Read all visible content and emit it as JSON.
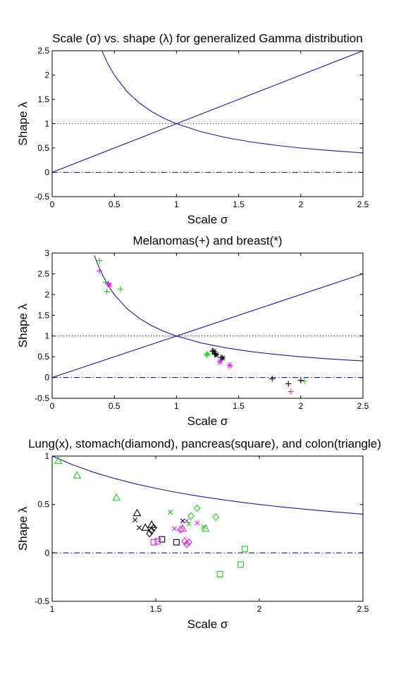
{
  "chart_data": [
    {
      "type": "line",
      "title": "Scale (σ) vs. shape (λ) for generalized Gamma distribution",
      "xlabel": "Scale σ",
      "ylabel": "Shape λ",
      "xlim": [
        0,
        2.5
      ],
      "ylim": [
        -0.5,
        2.5
      ],
      "xticks": [
        0,
        0.5,
        1,
        1.5,
        2,
        2.5
      ],
      "xtick_labels": [
        "0",
        "0.5",
        "1",
        "1.5",
        "2",
        "2.5"
      ],
      "yticks": [
        -0.5,
        0,
        0.5,
        1,
        1.5,
        2,
        2.5
      ],
      "ytick_labels": [
        "-0.5",
        "0",
        "0.5",
        "1",
        "1.5",
        "2",
        "2.5"
      ],
      "grid": false,
      "series": [
        {
          "kind": "line",
          "style": "solid",
          "color": "#1a1aa0",
          "x": [
            0,
            2.5
          ],
          "y": [
            0,
            2.5
          ]
        },
        {
          "kind": "line",
          "style": "solid",
          "color": "#1a1aa0",
          "x": [
            0.4,
            0.45,
            0.5,
            0.6,
            0.7,
            0.8,
            0.9,
            1.0,
            1.2,
            1.4,
            1.6,
            1.8,
            2.0,
            2.2,
            2.4,
            2.5
          ],
          "y": [
            2.5,
            2.222,
            2.0,
            1.667,
            1.429,
            1.25,
            1.111,
            1.0,
            0.833,
            0.714,
            0.625,
            0.556,
            0.5,
            0.455,
            0.417,
            0.4
          ]
        },
        {
          "kind": "line",
          "style": "dotted",
          "color": "#1a1aa0",
          "x": [
            0,
            2.5
          ],
          "y": [
            1,
            1
          ]
        },
        {
          "kind": "line",
          "style": "dashdot",
          "color": "#1a1aa0",
          "x": [
            0,
            2.5
          ],
          "y": [
            0,
            0
          ]
        }
      ]
    },
    {
      "type": "scatter",
      "title": "Melanomas(+) and breast(*)",
      "xlabel": "Scale σ",
      "ylabel": "Shape λ",
      "xlim": [
        0,
        2.5
      ],
      "ylim": [
        -0.5,
        3
      ],
      "xticks": [
        0,
        0.5,
        1,
        1.5,
        2,
        2.5
      ],
      "xtick_labels": [
        "0",
        "0.5",
        "1",
        "1.5",
        "2",
        "2.5"
      ],
      "yticks": [
        -0.5,
        0,
        0.5,
        1,
        1.5,
        2,
        2.5,
        3
      ],
      "ytick_labels": [
        "-0.5",
        "0",
        "0.5",
        "1",
        "1.5",
        "2",
        "2.5",
        "3"
      ],
      "grid": false,
      "series": [
        {
          "kind": "line",
          "style": "solid",
          "color": "#1a1aa0",
          "x": [
            0,
            2.5
          ],
          "y": [
            0,
            2.5
          ]
        },
        {
          "kind": "line",
          "style": "solid",
          "color": "#1a1aa0",
          "x": [
            0.34,
            0.36,
            0.4,
            0.45,
            0.5,
            0.6,
            0.7,
            0.8,
            0.9,
            1.0,
            1.2,
            1.4,
            1.6,
            1.8,
            2.0,
            2.2,
            2.4,
            2.5
          ],
          "y": [
            2.941,
            2.778,
            2.5,
            2.222,
            2.0,
            1.667,
            1.429,
            1.25,
            1.111,
            1.0,
            0.833,
            0.714,
            0.625,
            0.556,
            0.5,
            0.455,
            0.417,
            0.4
          ]
        },
        {
          "kind": "line",
          "style": "dotted",
          "color": "#1a1aa0",
          "x": [
            0,
            2.5
          ],
          "y": [
            1,
            1
          ]
        },
        {
          "kind": "line",
          "style": "dashdot",
          "color": "#1a1aa0",
          "x": [
            0,
            2.5
          ],
          "y": [
            0,
            0
          ]
        },
        {
          "kind": "markers",
          "marker": "+",
          "color": "#22cc22",
          "x": [
            0.38,
            0.43,
            0.44,
            0.55,
            1.24,
            2.03
          ],
          "y": [
            2.82,
            2.3,
            2.07,
            2.13,
            0.55,
            -0.09
          ]
        },
        {
          "kind": "markers",
          "marker": "+",
          "color": "#e020e0",
          "x": [
            0.38,
            0.45,
            1.92
          ],
          "y": [
            2.57,
            2.27,
            -0.34
          ]
        },
        {
          "kind": "markers",
          "marker": "+",
          "color": "#000000",
          "x": [
            1.29,
            1.31,
            1.36,
            1.77,
            1.9,
            2.0
          ],
          "y": [
            0.64,
            0.56,
            0.48,
            -0.03,
            -0.15,
            -0.07
          ]
        },
        {
          "kind": "markers",
          "marker": "*",
          "color": "#e020e0",
          "x": [
            0.46,
            1.35,
            1.43
          ],
          "y": [
            2.23,
            0.38,
            0.29
          ]
        },
        {
          "kind": "markers",
          "marker": "*",
          "color": "#22cc22",
          "x": [
            1.25
          ],
          "y": [
            0.56
          ]
        },
        {
          "kind": "markers",
          "marker": "*",
          "color": "#000000",
          "x": [
            1.3,
            1.32,
            1.37
          ],
          "y": [
            0.63,
            0.55,
            0.47
          ]
        }
      ]
    },
    {
      "type": "scatter",
      "title": "Lung(x), stomach(diamond), pancreas(square), and colon(triangle)",
      "xlabel": "Scale σ",
      "ylabel": "Shape λ",
      "xlim": [
        1,
        2.5
      ],
      "ylim": [
        -0.5,
        1
      ],
      "xticks": [
        1,
        1.5,
        2,
        2.5
      ],
      "xtick_labels": [
        "1",
        "1.5",
        "2",
        "2.5"
      ],
      "yticks": [
        -0.5,
        0,
        0.5,
        1
      ],
      "ytick_labels": [
        "-0.5",
        "0",
        "0.5",
        "1"
      ],
      "grid": false,
      "series": [
        {
          "kind": "line",
          "style": "solid",
          "color": "#1a1aa0",
          "x": [
            1.0,
            1.1,
            1.2,
            1.3,
            1.4,
            1.5,
            1.6,
            1.7,
            1.8,
            1.9,
            2.0,
            2.1,
            2.2,
            2.3,
            2.4,
            2.5
          ],
          "y": [
            1.0,
            0.909,
            0.833,
            0.769,
            0.714,
            0.667,
            0.625,
            0.588,
            0.556,
            0.526,
            0.5,
            0.476,
            0.455,
            0.435,
            0.417,
            0.4
          ]
        },
        {
          "kind": "line",
          "style": "dashdot",
          "color": "#1a1aa0",
          "x": [
            1,
            2.5
          ],
          "y": [
            0,
            0
          ]
        },
        {
          "kind": "markers",
          "marker": "triangle",
          "color": "#22cc22",
          "x": [
            1.03,
            1.12,
            1.31,
            1.74
          ],
          "y": [
            0.95,
            0.8,
            0.57,
            0.25
          ]
        },
        {
          "kind": "markers",
          "marker": "triangle",
          "color": "#000000",
          "x": [
            1.41,
            1.45,
            1.48
          ],
          "y": [
            0.41,
            0.26,
            0.29
          ]
        },
        {
          "kind": "markers",
          "marker": "triangle",
          "color": "#e020e0",
          "x": [
            1.63
          ],
          "y": [
            0.25
          ]
        },
        {
          "kind": "markers",
          "marker": "x",
          "color": "#000000",
          "x": [
            1.4,
            1.42,
            1.63
          ],
          "y": [
            0.34,
            0.26,
            0.33
          ]
        },
        {
          "kind": "markers",
          "marker": "x",
          "color": "#e020e0",
          "x": [
            1.57,
            1.59,
            1.65,
            1.7
          ],
          "y": [
            0.42,
            0.25,
            0.33,
            0.31
          ]
        },
        {
          "kind": "markers",
          "marker": "x",
          "color": "#22cc22",
          "x": [
            1.57,
            1.66,
            1.73
          ],
          "y": [
            0.42,
            0.3,
            0.27
          ]
        },
        {
          "kind": "markers",
          "marker": "diamond",
          "color": "#000000",
          "x": [
            1.47,
            1.48,
            1.49
          ],
          "y": [
            0.2,
            0.23,
            0.26
          ]
        },
        {
          "kind": "markers",
          "marker": "diamond",
          "color": "#22cc22",
          "x": [
            1.67,
            1.7,
            1.79
          ],
          "y": [
            0.38,
            0.46,
            0.37
          ]
        },
        {
          "kind": "markers",
          "marker": "diamond",
          "color": "#e020e0",
          "x": [
            1.62,
            1.64,
            1.65,
            1.66
          ],
          "y": [
            0.24,
            0.12,
            0.09,
            0.11
          ]
        },
        {
          "kind": "markers",
          "marker": "square",
          "color": "#000000",
          "x": [
            1.53,
            1.6
          ],
          "y": [
            0.14,
            0.11
          ]
        },
        {
          "kind": "markers",
          "marker": "square",
          "color": "#e020e0",
          "x": [
            1.49,
            1.51
          ],
          "y": [
            0.11,
            0.12
          ]
        },
        {
          "kind": "markers",
          "marker": "square",
          "color": "#22cc22",
          "x": [
            1.81,
            1.91,
            1.93
          ],
          "y": [
            -0.22,
            -0.12,
            0.04
          ]
        }
      ]
    }
  ]
}
